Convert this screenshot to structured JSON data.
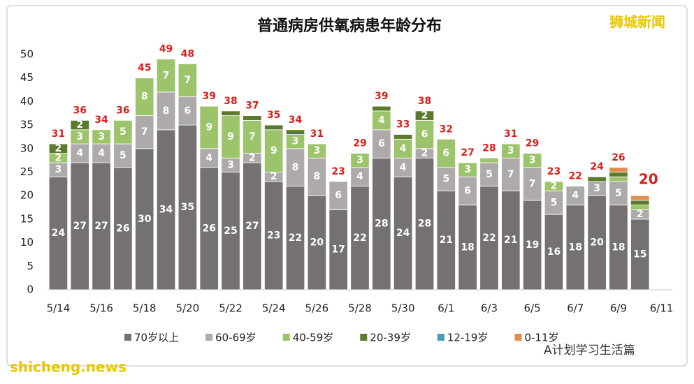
{
  "chart_data": {
    "type": "stacked_bar",
    "title": "普通病房供氧病患年龄分布",
    "watermarks": [
      "狮城新闻",
      "shicheng.news",
      "A计划学习生活篇"
    ],
    "categories": [
      "5/14",
      null,
      "5/16",
      null,
      "5/18",
      null,
      "5/20",
      null,
      "5/22",
      null,
      "5/24",
      null,
      "5/26",
      null,
      "5/28",
      null,
      "5/30",
      null,
      "6/1",
      null,
      "6/3",
      null,
      "6/5",
      null,
      "6/7",
      null,
      "6/9",
      null,
      "6/11"
    ],
    "series": [
      {
        "name": "70岁以上",
        "color": "#767171",
        "values": [
          24,
          27,
          27,
          26,
          30,
          34,
          35,
          26,
          25,
          27,
          23,
          22,
          20,
          17,
          22,
          28,
          24,
          28,
          21,
          18,
          22,
          21,
          19,
          16,
          18,
          20,
          18,
          15,
          null
        ]
      },
      {
        "name": "60-69岁",
        "color": "#aeaaaa",
        "values": [
          3,
          4,
          4,
          5,
          7,
          8,
          6,
          4,
          3,
          2,
          2,
          8,
          8,
          6,
          4,
          6,
          4,
          2,
          5,
          6,
          5,
          7,
          7,
          5,
          4,
          3,
          5,
          2,
          null
        ]
      },
      {
        "name": "40-59岁",
        "color": "#9cc46a",
        "values": [
          2,
          3,
          3,
          5,
          8,
          7,
          7,
          9,
          9,
          7,
          9,
          3,
          3,
          0,
          3,
          4,
          4,
          6,
          6,
          3,
          1,
          3,
          3,
          2,
          0,
          0,
          1,
          1,
          null
        ]
      },
      {
        "name": "20-39岁",
        "color": "#5b7a2e",
        "values": [
          2,
          2,
          0,
          0,
          0,
          0,
          0,
          0,
          1,
          1,
          1,
          1,
          0,
          0,
          0,
          1,
          1,
          2,
          0,
          0,
          0,
          0,
          0,
          0,
          0,
          1,
          1,
          1,
          null
        ]
      },
      {
        "name": "12-19岁",
        "color": "#4a9ab5",
        "values": [
          0,
          0,
          0,
          0,
          0,
          0,
          0,
          0,
          0,
          0,
          0,
          0,
          0,
          0,
          0,
          0,
          0,
          0,
          0,
          0,
          0,
          0,
          0,
          0,
          0,
          0,
          0,
          0,
          null
        ]
      },
      {
        "name": "0-11岁",
        "color": "#e08d4f",
        "values": [
          0,
          0,
          0,
          0,
          0,
          0,
          0,
          0,
          0,
          0,
          0,
          0,
          0,
          0,
          0,
          0,
          0,
          0,
          0,
          0,
          0,
          0,
          0,
          0,
          0,
          0,
          1,
          1,
          null
        ]
      }
    ],
    "totals": [
      31,
      36,
      34,
      36,
      45,
      49,
      48,
      39,
      38,
      37,
      35,
      34,
      31,
      23,
      29,
      39,
      33,
      38,
      32,
      27,
      28,
      31,
      29,
      23,
      22,
      24,
      26,
      20,
      null
    ],
    "ylim": [
      0,
      50
    ],
    "yticks": [
      0,
      5,
      10,
      15,
      20,
      25,
      30,
      35,
      40,
      45,
      50
    ],
    "grid": false
  }
}
